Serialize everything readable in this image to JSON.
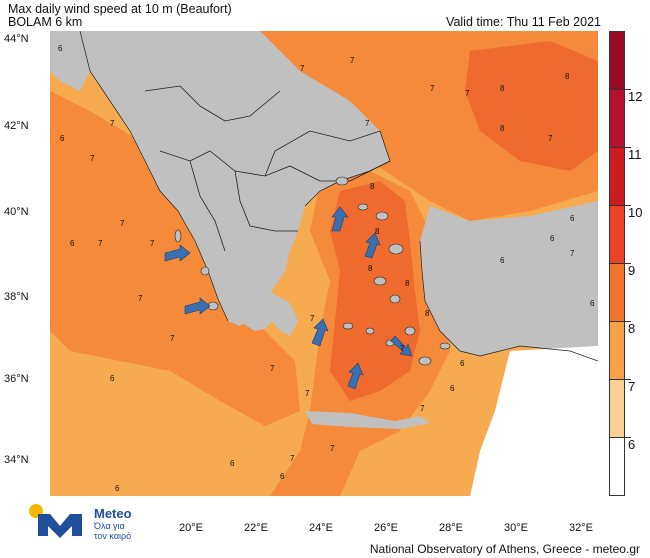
{
  "header": {
    "title": "Max daily wind speed at 10 m (Beaufort)",
    "model": "BOLAM 6 km",
    "valid_time": "Valid time: Thu 11 Feb 2021"
  },
  "map": {
    "lat_labels": [
      "44°N",
      "42°N",
      "40°N",
      "38°N",
      "36°N",
      "34°N"
    ],
    "lon_labels": [
      "20°E",
      "22°E",
      "24°E",
      "26°E",
      "28°E",
      "30°E",
      "32°E"
    ],
    "colors": {
      "land": "#c0c0c0",
      "bf6": "#f7ab51",
      "bf7": "#f58a3a",
      "bf8": "#ef6b2d",
      "borders": "#222222"
    }
  },
  "colorbar": {
    "labels": [
      "12",
      "11",
      "10",
      "9",
      "8",
      "7",
      "6"
    ],
    "colors": [
      "#9b0a23",
      "#b4122a",
      "#cc1c22",
      "#ea4427",
      "#f2732e",
      "#f7a04a",
      "#fbd093",
      "#ffffff"
    ]
  },
  "logo": {
    "name": "Meteo",
    "tagline_1": "Όλα για",
    "tagline_2": "τον καιρό"
  },
  "footer": "National Observatory of Athens, Greece - meteo.gr"
}
